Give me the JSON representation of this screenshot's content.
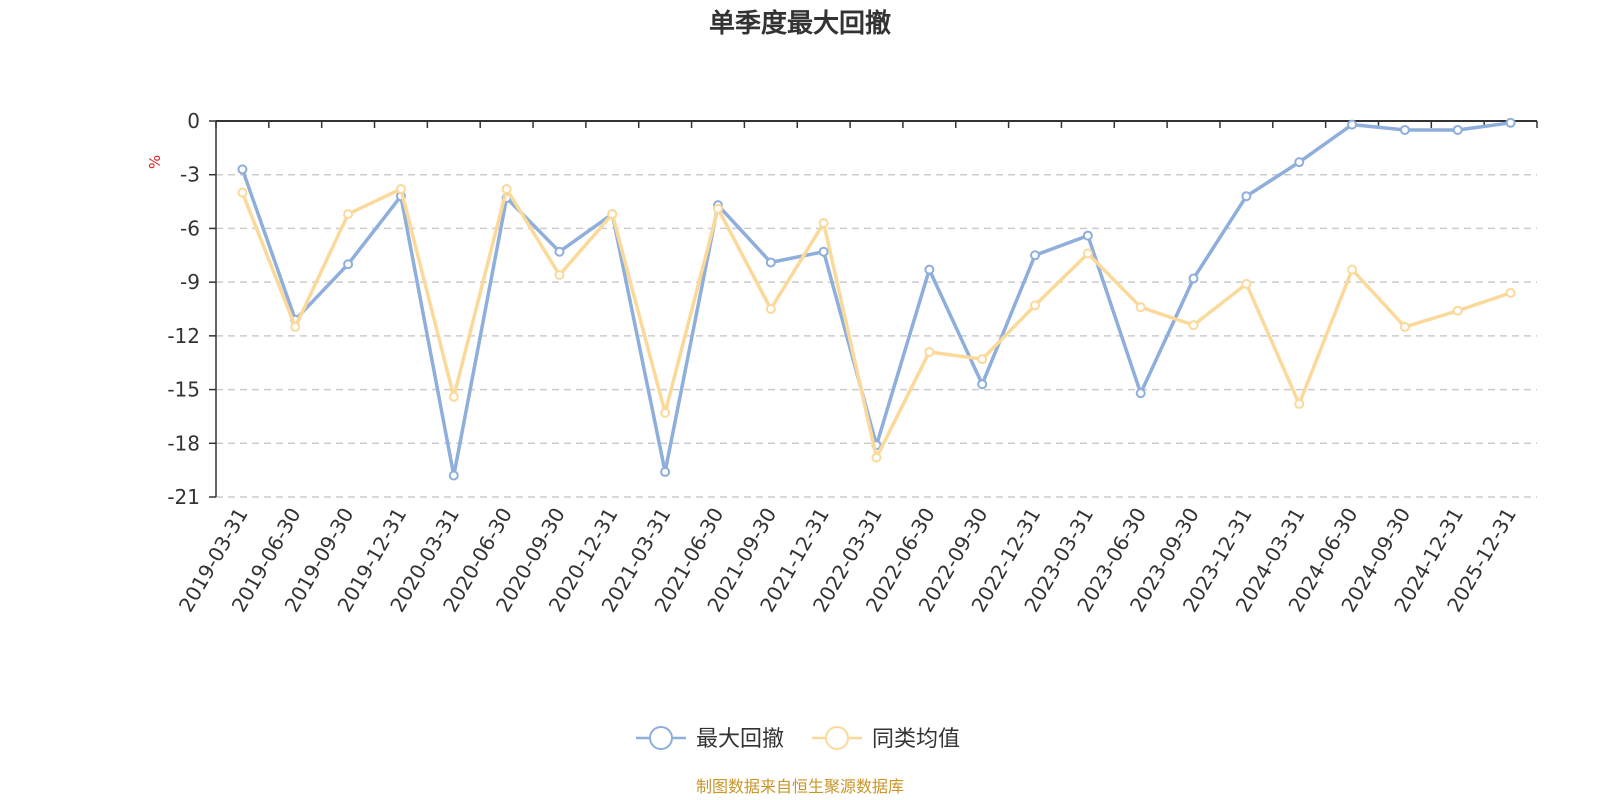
{
  "chart_data": {
    "type": "line",
    "title": "单季度最大回撤",
    "ylabel": "%",
    "xlabel": "",
    "ylim": [
      -21,
      0
    ],
    "yticks": [
      0,
      -3,
      -6,
      -9,
      -12,
      -15,
      -18,
      -21
    ],
    "grid": true,
    "legend_position": "bottom",
    "categories": [
      "2019-03-31",
      "2019-06-30",
      "2019-09-30",
      "2019-12-31",
      "2020-03-31",
      "2020-06-30",
      "2020-09-30",
      "2020-12-31",
      "2021-03-31",
      "2021-06-30",
      "2021-09-30",
      "2021-12-31",
      "2022-03-31",
      "2022-06-30",
      "2022-09-30",
      "2022-12-31",
      "2023-03-31",
      "2023-06-30",
      "2023-09-30",
      "2023-12-31",
      "2024-03-31",
      "2024-06-30",
      "2024-09-30",
      "2024-12-31",
      "2025-12-31"
    ],
    "series": [
      {
        "name": "最大回撤",
        "color": "#8eaedb",
        "values": [
          -2.7,
          -11.1,
          -8.0,
          -4.2,
          -19.8,
          -4.3,
          -7.3,
          -5.2,
          -19.6,
          -4.7,
          -7.9,
          -7.3,
          -18.1,
          -8.3,
          -14.7,
          -7.5,
          -6.4,
          -15.2,
          -8.8,
          -4.2,
          -2.3,
          -0.2,
          -0.5,
          -0.5,
          -0.1
        ]
      },
      {
        "name": "同类均值",
        "color": "#fbd99a",
        "values": [
          -4.0,
          -11.5,
          -5.2,
          -3.8,
          -15.4,
          -3.8,
          -8.6,
          -5.2,
          -16.3,
          -4.9,
          -10.5,
          -5.7,
          -18.8,
          -12.9,
          -13.3,
          -10.3,
          -7.4,
          -10.4,
          -11.4,
          -9.1,
          -15.8,
          -8.3,
          -11.5,
          -10.6,
          -9.6
        ]
      }
    ]
  },
  "footer": {
    "source": "制图数据来自恒生聚源数据库"
  }
}
